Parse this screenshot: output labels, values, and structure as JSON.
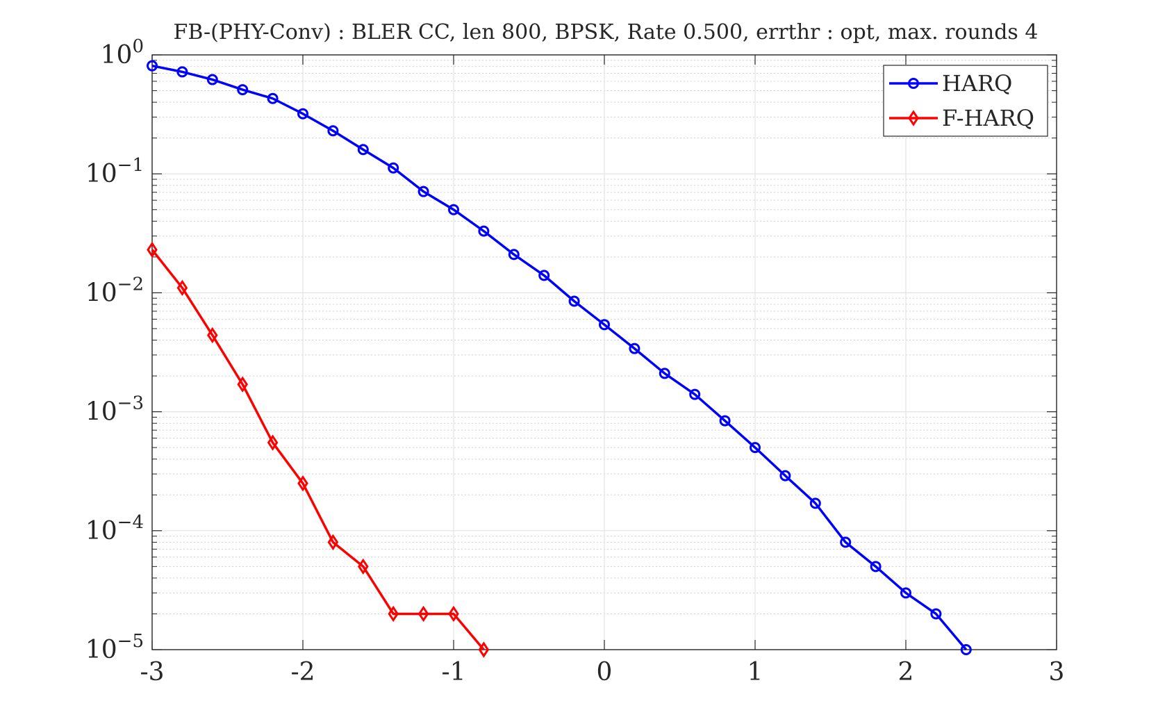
{
  "chart_data": {
    "type": "line",
    "title": "FB-(PHY-Conv) : BLER CC, len 800, BPSK, Rate 0.500, errthr : opt, max. rounds 4",
    "xlabel": "",
    "ylabel": "",
    "xlim": [
      -3,
      3
    ],
    "ylim": [
      1e-05,
      1
    ],
    "yscale": "log",
    "grid": true,
    "minor_grid": true,
    "legend_position": "top-right",
    "x_ticks": [
      "-3",
      "-2",
      "-1",
      "0",
      "1",
      "2",
      "3"
    ],
    "x_tick_values": [
      -3,
      -2,
      -1,
      0,
      1,
      2,
      3
    ],
    "y_ticks": [
      {
        "base": "10",
        "exp": "0",
        "value": 1
      },
      {
        "base": "10",
        "exp": "−1",
        "value": 0.1
      },
      {
        "base": "10",
        "exp": "−2",
        "value": 0.01
      },
      {
        "base": "10",
        "exp": "−3",
        "value": 0.001
      },
      {
        "base": "10",
        "exp": "−4",
        "value": 0.0001
      },
      {
        "base": "10",
        "exp": "−5",
        "value": 1e-05
      }
    ],
    "series": [
      {
        "name": "HARQ",
        "color": "#0000ff",
        "marker": "circle",
        "x": [
          -3,
          -2.8,
          -2.6,
          -2.4,
          -2.2,
          -2,
          -1.8,
          -1.6,
          -1.4,
          -1.2,
          -1,
          -0.8,
          -0.6,
          -0.4,
          -0.2,
          0,
          0.2,
          0.4,
          0.6,
          0.8,
          1,
          1.2,
          1.4,
          1.6,
          1.8,
          2,
          2.2,
          2.4
        ],
        "y": [
          0.81,
          0.72,
          0.62,
          0.51,
          0.43,
          0.32,
          0.23,
          0.16,
          0.112,
          0.071,
          0.05,
          0.033,
          0.021,
          0.014,
          0.0085,
          0.0054,
          0.0034,
          0.0021,
          0.0014,
          0.00084,
          0.0005,
          0.00029,
          0.00017,
          8e-05,
          5e-05,
          3e-05,
          2e-05,
          1e-05
        ]
      },
      {
        "name": "F-HARQ",
        "color": "#ff0000",
        "marker": "diamond",
        "x": [
          -3,
          -2.8,
          -2.6,
          -2.4,
          -2.2,
          -2,
          -1.8,
          -1.6,
          -1.4,
          -1.2,
          -1,
          -0.8
        ],
        "y": [
          0.023,
          0.011,
          0.0044,
          0.0017,
          0.00055,
          0.00025,
          8e-05,
          5e-05,
          2e-05,
          2e-05,
          2e-05,
          1e-05
        ]
      }
    ]
  }
}
